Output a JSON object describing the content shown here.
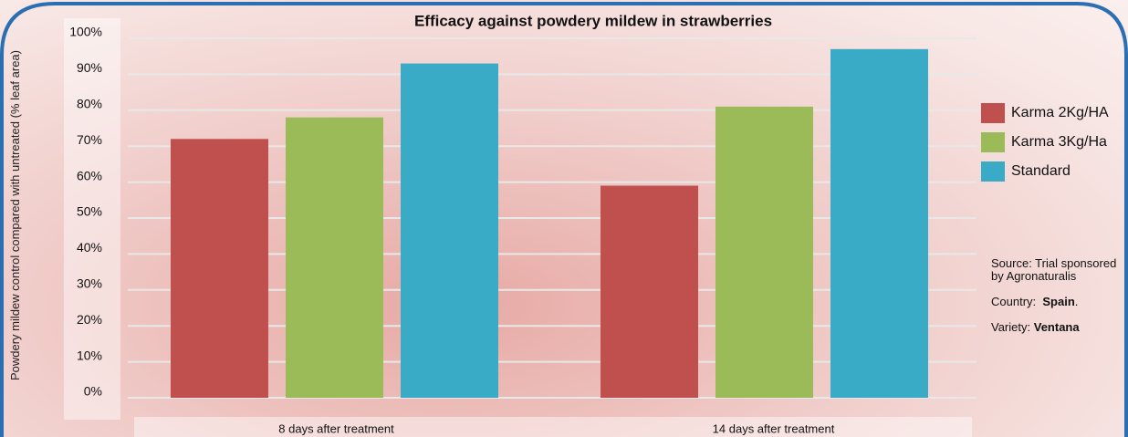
{
  "chart_data": {
    "type": "bar",
    "title": "Efficacy against powdery mildew in strawberries",
    "y_label": "Powdery mildew control compared with untreated (% leaf area)",
    "categories": [
      "8 days after treatment",
      "14 days after treatment"
    ],
    "series": [
      {
        "name": "Karma 2Kg/HA",
        "color": "#c0504d",
        "values": [
          72,
          59
        ]
      },
      {
        "name": "Karma 3Kg/Ha",
        "color": "#9bbb59",
        "values": [
          78,
          81
        ]
      },
      {
        "name": "Standard",
        "color": "#3aabc7",
        "values": [
          93,
          97
        ]
      }
    ],
    "ylim": [
      0,
      100
    ],
    "yticks": [
      {
        "value": 0,
        "label": "0%"
      },
      {
        "value": 10,
        "label": "10%"
      },
      {
        "value": 20,
        "label": "20%"
      },
      {
        "value": 30,
        "label": "30%"
      },
      {
        "value": 40,
        "label": "40%"
      },
      {
        "value": 50,
        "label": "50%"
      },
      {
        "value": 60,
        "label": "60%"
      },
      {
        "value": 70,
        "label": "70%"
      },
      {
        "value": 80,
        "label": "80%"
      },
      {
        "value": 90,
        "label": "90%"
      },
      {
        "value": 100,
        "label": "100%"
      }
    ],
    "grid": true,
    "legend": "right",
    "annotations": {
      "source": "Source: Trial sponsored by Agronaturalis",
      "country_label": "Country:",
      "country": "Spain",
      "country_end": ".",
      "variety_label": "Variety:",
      "variety": "Ventana"
    }
  }
}
